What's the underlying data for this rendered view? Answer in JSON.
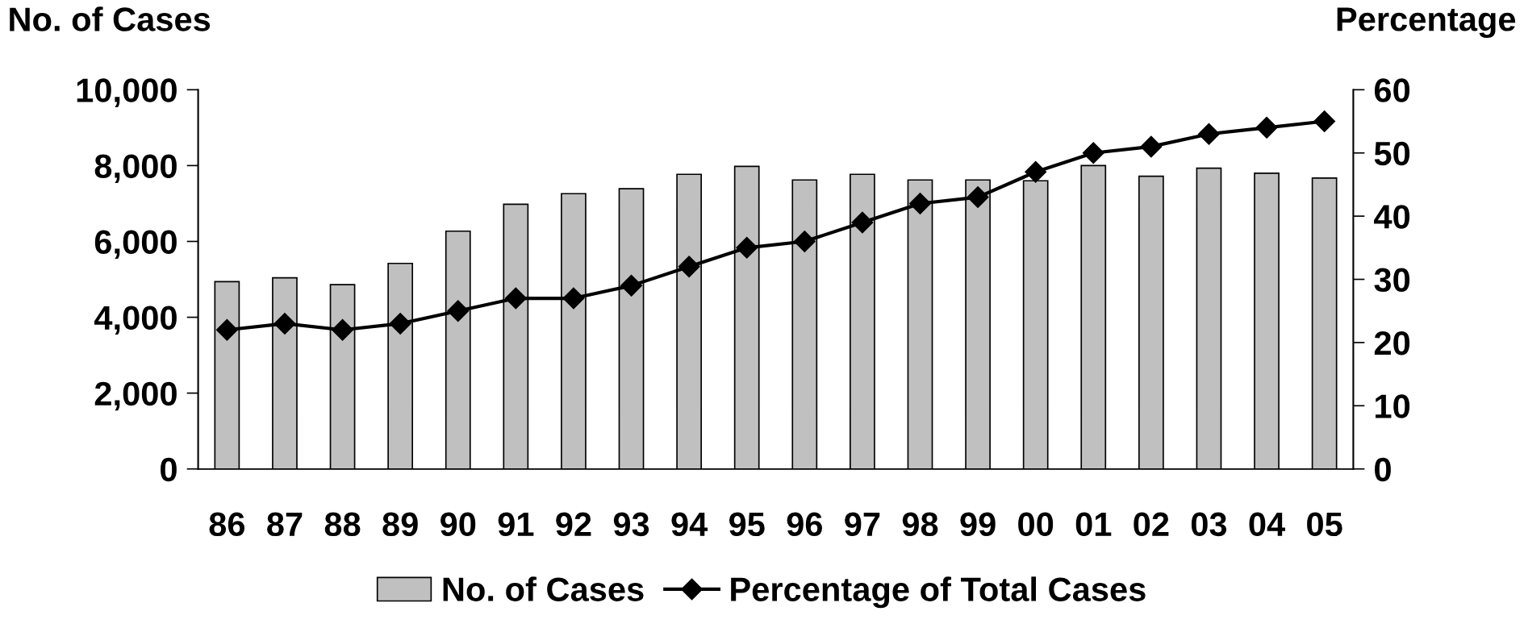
{
  "chart_data": {
    "type": "bar",
    "ylabel": "No. of Cases",
    "y2label": "Percentage",
    "categories": [
      "86",
      "87",
      "88",
      "89",
      "90",
      "91",
      "92",
      "93",
      "94",
      "95",
      "96",
      "97",
      "98",
      "99",
      "00",
      "01",
      "02",
      "03",
      "04",
      "05"
    ],
    "series": [
      {
        "name": "No. of Cases",
        "color": "#c0c0c0",
        "values": [
          4940,
          5040,
          4860,
          5420,
          6270,
          6980,
          7260,
          7390,
          7770,
          7980,
          7620,
          7770,
          7620,
          7620,
          7600,
          8000,
          7720,
          7930,
          7800,
          7670
        ]
      },
      {
        "name": "Percentage of Total Cases",
        "type": "line",
        "axis": "y2",
        "color": "#000000",
        "marker": "diamond",
        "values": [
          22,
          23,
          22,
          23,
          25,
          27,
          27,
          29,
          32,
          35,
          36,
          39,
          42,
          43,
          47,
          50,
          51,
          53,
          54,
          55
        ]
      }
    ],
    "ylim": [
      0,
      10000
    ],
    "yticks": [
      {
        "value": 0,
        "label": "0"
      },
      {
        "value": 2000,
        "label": "2,000"
      },
      {
        "value": 4000,
        "label": "4,000"
      },
      {
        "value": 6000,
        "label": "6,000"
      },
      {
        "value": 8000,
        "label": "8,000"
      },
      {
        "value": 10000,
        "label": "10,000"
      }
    ],
    "y2lim": [
      0,
      60
    ],
    "y2ticks": [
      0,
      10,
      20,
      30,
      40,
      50,
      60
    ],
    "grid": false,
    "legend": "bottom"
  }
}
